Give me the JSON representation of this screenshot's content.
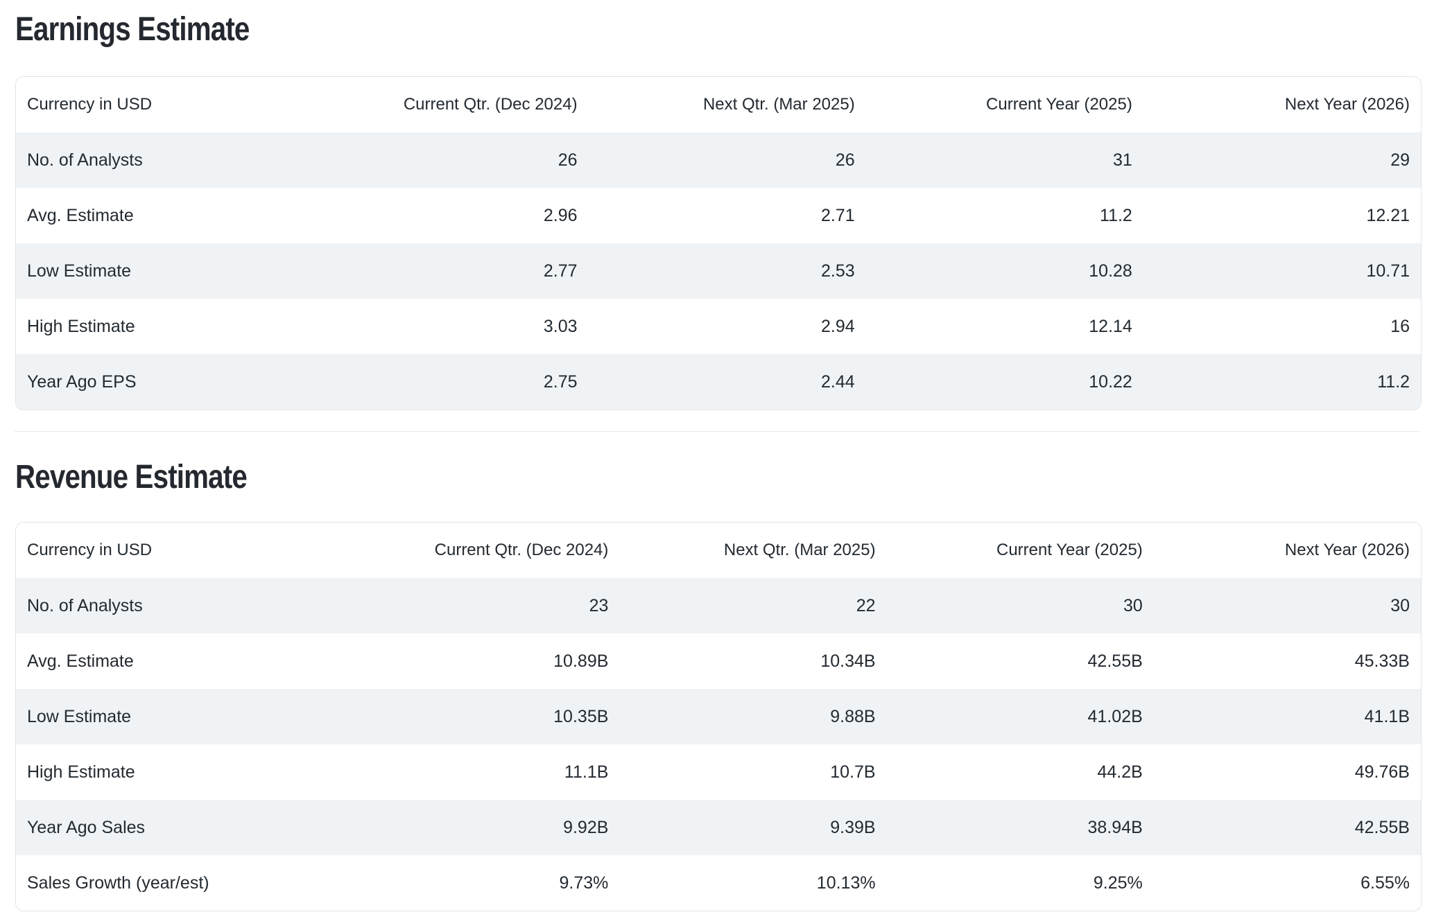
{
  "colors": {
    "text": "#232a31",
    "title": "#24292f",
    "row_stripe": "#f0f3f5",
    "card_border": "#e0e4e9",
    "section_divider": "#e4e7ea",
    "background": "#ffffff"
  },
  "earnings": {
    "title": "Earnings Estimate",
    "table": {
      "corner_label": "Currency in USD",
      "columns": [
        "Current Qtr. (Dec 2024)",
        "Next Qtr. (Mar 2025)",
        "Current Year (2025)",
        "Next Year (2026)"
      ],
      "rows": [
        {
          "label": "No. of Analysts",
          "values": [
            "26",
            "26",
            "31",
            "29"
          ]
        },
        {
          "label": "Avg. Estimate",
          "values": [
            "2.96",
            "2.71",
            "11.2",
            "12.21"
          ]
        },
        {
          "label": "Low Estimate",
          "values": [
            "2.77",
            "2.53",
            "10.28",
            "10.71"
          ]
        },
        {
          "label": "High Estimate",
          "values": [
            "3.03",
            "2.94",
            "12.14",
            "16"
          ]
        },
        {
          "label": "Year Ago EPS",
          "values": [
            "2.75",
            "2.44",
            "10.22",
            "11.2"
          ]
        }
      ]
    }
  },
  "revenue": {
    "title": "Revenue Estimate",
    "table": {
      "corner_label": "Currency in USD",
      "columns": [
        "Current Qtr. (Dec 2024)",
        "Next Qtr. (Mar 2025)",
        "Current Year (2025)",
        "Next Year (2026)"
      ],
      "rows": [
        {
          "label": "No. of Analysts",
          "values": [
            "23",
            "22",
            "30",
            "30"
          ]
        },
        {
          "label": "Avg. Estimate",
          "values": [
            "10.89B",
            "10.34B",
            "42.55B",
            "45.33B"
          ]
        },
        {
          "label": "Low Estimate",
          "values": [
            "10.35B",
            "9.88B",
            "41.02B",
            "41.1B"
          ]
        },
        {
          "label": "High Estimate",
          "values": [
            "11.1B",
            "10.7B",
            "44.2B",
            "49.76B"
          ]
        },
        {
          "label": "Year Ago Sales",
          "values": [
            "9.92B",
            "9.39B",
            "38.94B",
            "42.55B"
          ]
        },
        {
          "label": "Sales Growth (year/est)",
          "values": [
            "9.73%",
            "10.13%",
            "9.25%",
            "6.55%"
          ]
        }
      ]
    }
  }
}
